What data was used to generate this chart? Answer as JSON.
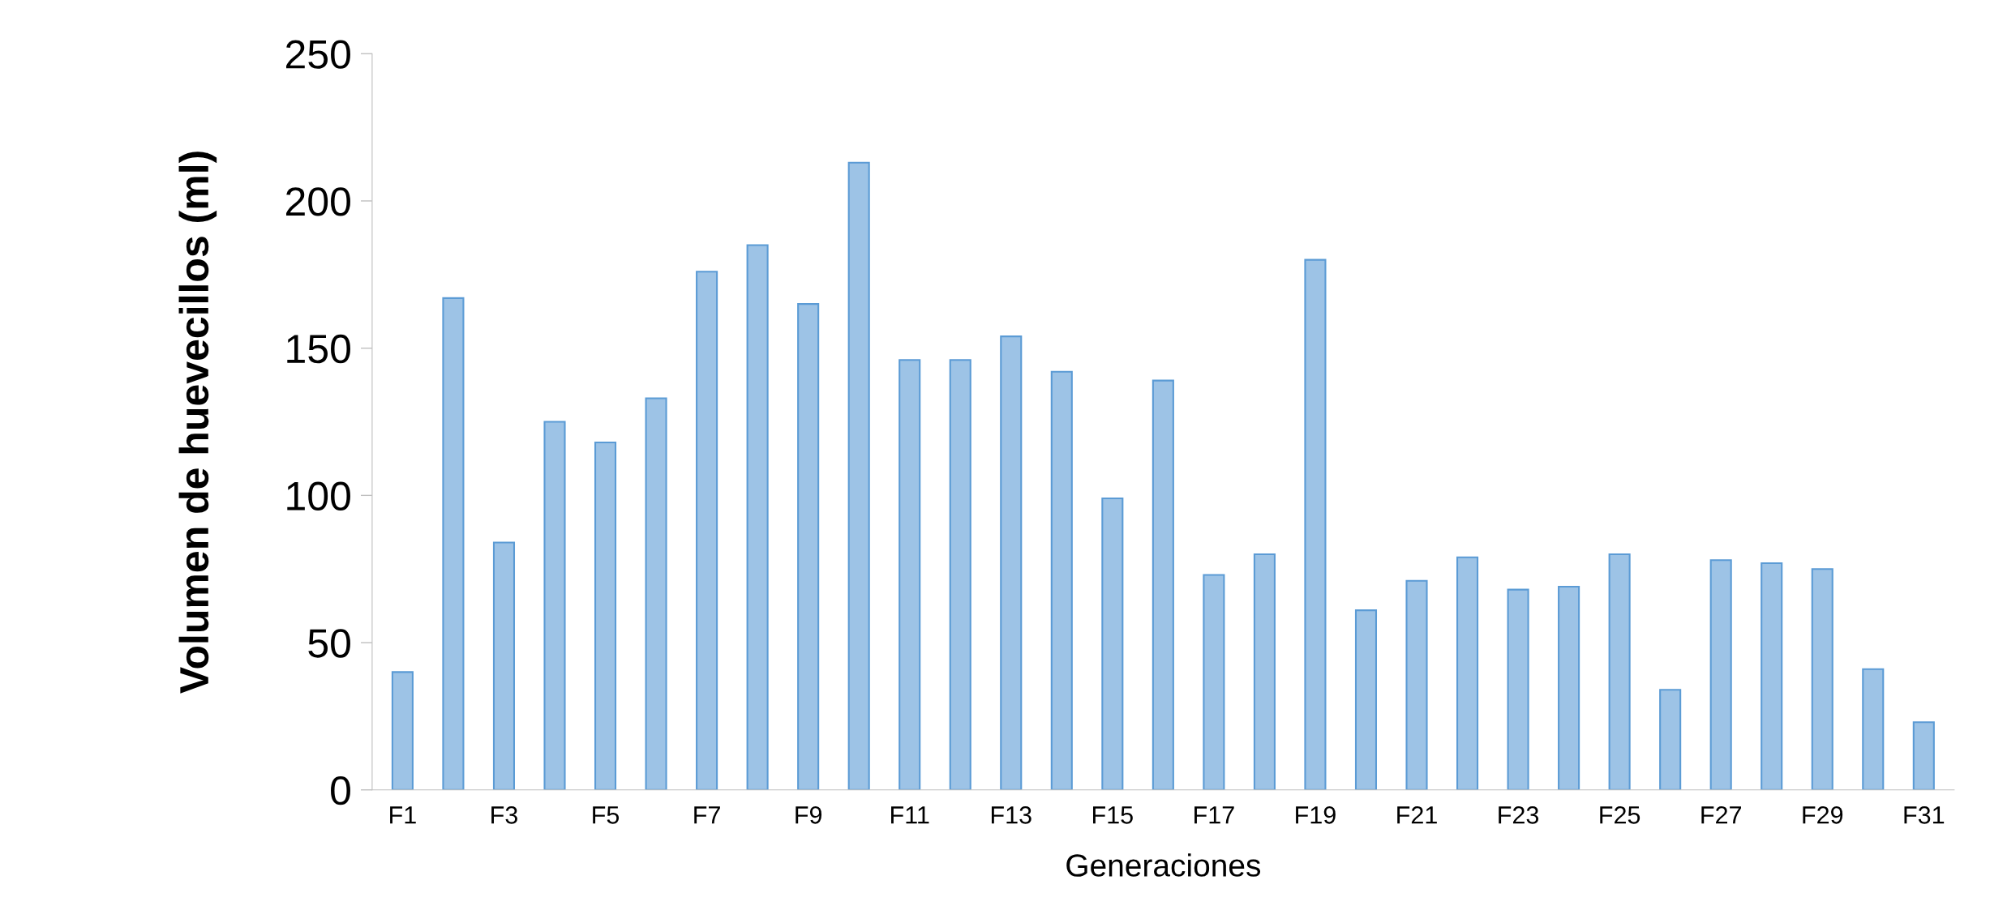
{
  "chart_data": {
    "type": "bar",
    "xlabel": "Generaciones",
    "ylabel": "Volumen de huevecillos (ml)",
    "categories": [
      "F1",
      null,
      "F3",
      null,
      "F5",
      null,
      "F7",
      null,
      "F9",
      null,
      "F11",
      null,
      "F13",
      null,
      "F15",
      null,
      "F17",
      null,
      "F19",
      null,
      "F21",
      null,
      "F23",
      null,
      "F25",
      null,
      "F27",
      null,
      "F29",
      null,
      "F31"
    ],
    "values": [
      40,
      167,
      84,
      125,
      118,
      133,
      176,
      185,
      165,
      213,
      146,
      146,
      154,
      142,
      99,
      139,
      73,
      80,
      180,
      61,
      71,
      79,
      68,
      69,
      80,
      34,
      78,
      77,
      75,
      41,
      23
    ],
    "color": "#9dc3e6",
    "ylim": [
      0,
      250
    ],
    "yticks": [
      0,
      50,
      100,
      150,
      200,
      250
    ],
    "grid": false,
    "legend": false
  }
}
